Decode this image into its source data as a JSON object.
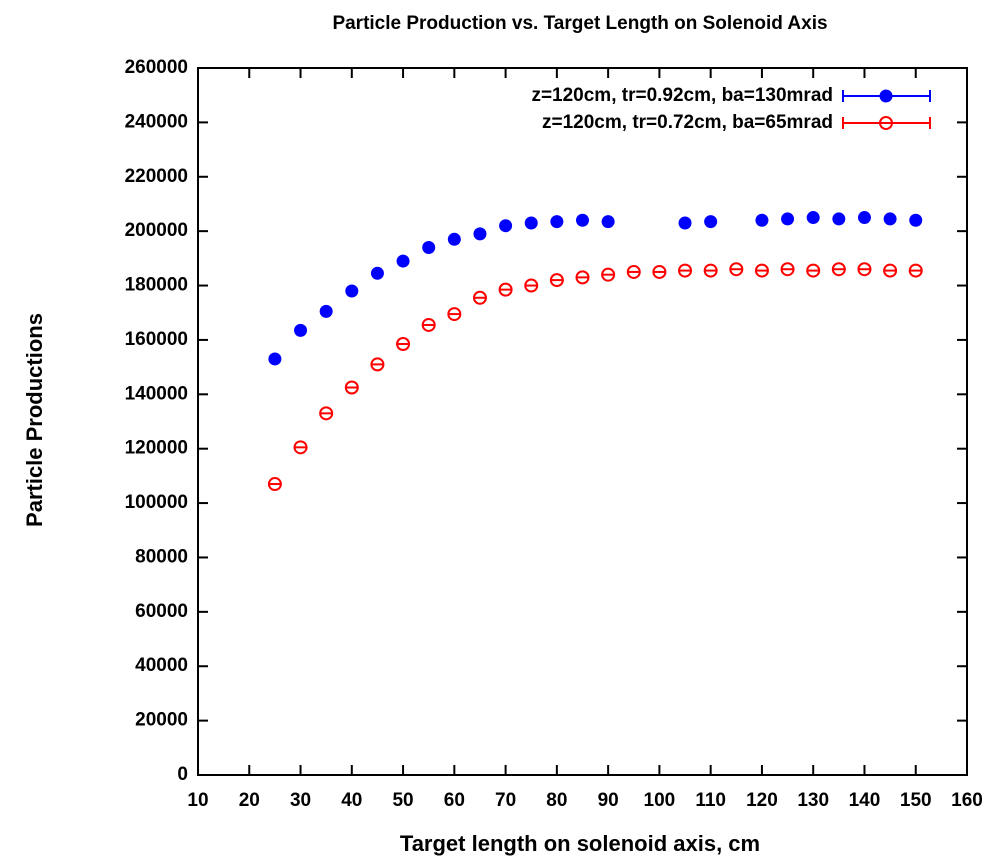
{
  "chart_data": {
    "type": "scatter",
    "title": "Particle Production vs. Target Length on Solenoid Axis",
    "x_label": "Target length on solenoid axis, cm",
    "y_label": "Particle Productions",
    "xlim": [
      10,
      160
    ],
    "xticks": [
      10,
      20,
      30,
      40,
      50,
      60,
      70,
      80,
      90,
      100,
      110,
      120,
      130,
      140,
      150,
      160
    ],
    "ylim": [
      0,
      260000
    ],
    "yticks": [
      0,
      20000,
      40000,
      60000,
      80000,
      100000,
      120000,
      140000,
      160000,
      180000,
      200000,
      220000,
      240000,
      260000
    ],
    "legend": "top-right",
    "series": [
      {
        "name": "z=120cm, tr=0.92cm, ba=130mrad",
        "color": "#0000ff",
        "marker": "filled",
        "x": [
          25,
          30,
          35,
          40,
          45,
          50,
          55,
          60,
          65,
          70,
          75,
          80,
          85,
          90,
          105,
          110,
          120,
          125,
          130,
          135,
          140,
          145,
          150
        ],
        "values": [
          153000,
          163500,
          170500,
          178000,
          184500,
          189000,
          194000,
          197000,
          199000,
          202000,
          203000,
          203500,
          204000,
          203500,
          203000,
          203500,
          204000,
          204500,
          205000,
          204500,
          205000,
          204500,
          204000
        ]
      },
      {
        "name": "z=120cm, tr=0.72cm, ba=65mrad",
        "color": "#ff0000",
        "marker": "open",
        "x": [
          25,
          30,
          35,
          40,
          45,
          50,
          55,
          60,
          65,
          70,
          75,
          80,
          85,
          90,
          95,
          100,
          105,
          110,
          115,
          120,
          125,
          130,
          135,
          140,
          145,
          150
        ],
        "values": [
          107000,
          120500,
          133000,
          142500,
          151000,
          158500,
          165500,
          169500,
          175500,
          178500,
          180000,
          182000,
          183000,
          184000,
          185000,
          185000,
          185500,
          185500,
          186000,
          185500,
          186000,
          185500,
          186000,
          186000,
          185500,
          185500
        ]
      }
    ]
  }
}
